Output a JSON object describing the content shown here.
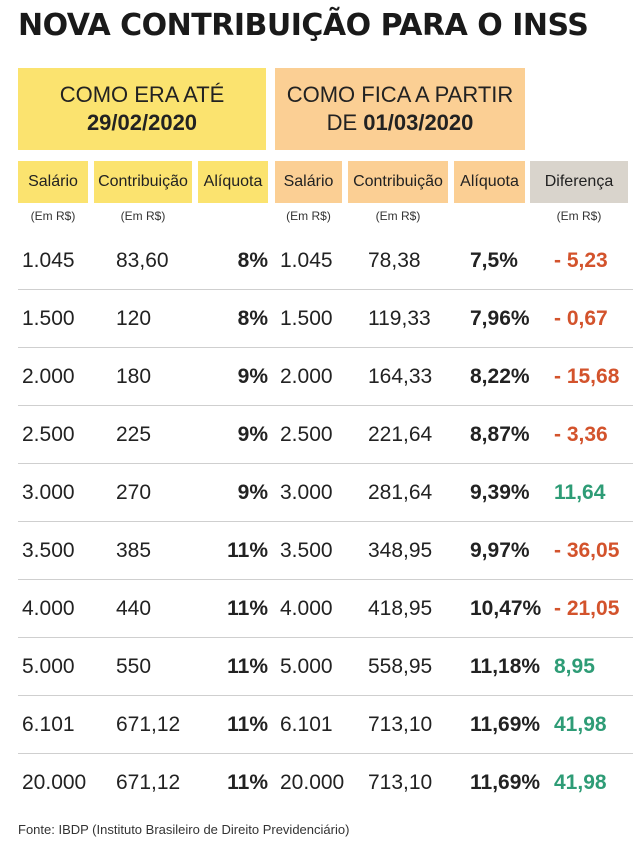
{
  "title": "NOVA CONTRIBUIÇÃO PARA O INSS",
  "periods": {
    "old": {
      "line1": "COMO ERA ATÉ",
      "line2_prefix": "",
      "line2_bold": "29/02/2020"
    },
    "new": {
      "line1": "COMO FICA A PARTIR",
      "line2_prefix": "DE ",
      "line2_bold": "01/03/2020"
    }
  },
  "headers": {
    "salario_old": "Salário",
    "contribuicao_old": "Contribuição",
    "aliquota_old": "Alíquota",
    "salario_new": "Salário",
    "contribuicao_new": "Contribuição",
    "aliquota_new": "Alíquota",
    "diferenca": "Diferença"
  },
  "units": {
    "salario_old": "(Em R$)",
    "contribuicao_old": "(Em R$)",
    "salario_new": "(Em R$)",
    "contribuicao_new": "(Em R$)",
    "diferenca": "(Em R$)"
  },
  "colors": {
    "yellow": "#fbe36f",
    "orange": "#fbcf94",
    "gray": "#d9d4cc",
    "negative": "#d3532c",
    "positive": "#2e9c76"
  },
  "chart_data": {
    "type": "table",
    "title": "NOVA CONTRIBUIÇÃO PARA O INSS",
    "columns": [
      "Salário",
      "Contribuição",
      "Alíquota",
      "Salário",
      "Contribuição",
      "Alíquota",
      "Diferença"
    ],
    "rows": [
      {
        "salario_old": "1.045",
        "contrib_old": "83,60",
        "aliq_old": "8%",
        "salario_new": "1.045",
        "contrib_new": "78,38",
        "aliq_new": "7,5%",
        "diferenca": "- 5,23",
        "sign": "neg"
      },
      {
        "salario_old": "1.500",
        "contrib_old": "120",
        "aliq_old": "8%",
        "salario_new": "1.500",
        "contrib_new": "119,33",
        "aliq_new": "7,96%",
        "diferenca": "- 0,67",
        "sign": "neg"
      },
      {
        "salario_old": "2.000",
        "contrib_old": "180",
        "aliq_old": "9%",
        "salario_new": "2.000",
        "contrib_new": "164,33",
        "aliq_new": "8,22%",
        "diferenca": "- 15,68",
        "sign": "neg"
      },
      {
        "salario_old": "2.500",
        "contrib_old": "225",
        "aliq_old": "9%",
        "salario_new": "2.500",
        "contrib_new": "221,64",
        "aliq_new": "8,87%",
        "diferenca": "- 3,36",
        "sign": "neg"
      },
      {
        "salario_old": "3.000",
        "contrib_old": "270",
        "aliq_old": "9%",
        "salario_new": "3.000",
        "contrib_new": "281,64",
        "aliq_new": "9,39%",
        "diferenca": "11,64",
        "sign": "pos"
      },
      {
        "salario_old": "3.500",
        "contrib_old": "385",
        "aliq_old": "11%",
        "salario_new": "3.500",
        "contrib_new": "348,95",
        "aliq_new": "9,97%",
        "diferenca": "- 36,05",
        "sign": "neg"
      },
      {
        "salario_old": "4.000",
        "contrib_old": "440",
        "aliq_old": "11%",
        "salario_new": "4.000",
        "contrib_new": "418,95",
        "aliq_new": "10,47%",
        "diferenca": "- 21,05",
        "sign": "neg"
      },
      {
        "salario_old": "5.000",
        "contrib_old": "550",
        "aliq_old": "11%",
        "salario_new": "5.000",
        "contrib_new": "558,95",
        "aliq_new": "11,18%",
        "diferenca": "8,95",
        "sign": "pos"
      },
      {
        "salario_old": "6.101",
        "contrib_old": "671,12",
        "aliq_old": "11%",
        "salario_new": "6.101",
        "contrib_new": "713,10",
        "aliq_new": "11,69%",
        "diferenca": "41,98",
        "sign": "pos"
      },
      {
        "salario_old": "20.000",
        "contrib_old": "671,12",
        "aliq_old": "11%",
        "salario_new": "20.000",
        "contrib_new": "713,10",
        "aliq_new": "11,69%",
        "diferenca": "41,98",
        "sign": "pos"
      }
    ]
  },
  "source": "Fonte: IBDP (Instituto Brasileiro de Direito Previdenciário)"
}
